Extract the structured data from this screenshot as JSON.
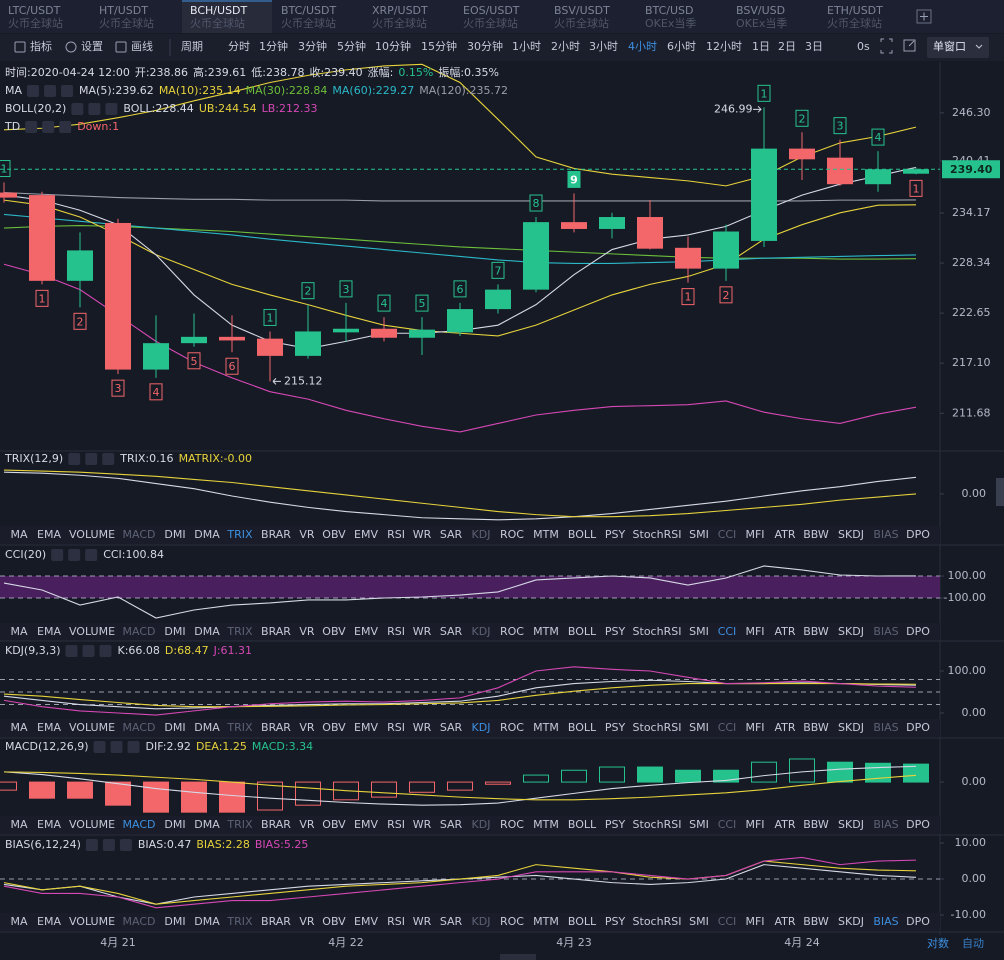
{
  "tabs": [
    {
      "pair": "LTC/USDT",
      "exchange": "火币全球站"
    },
    {
      "pair": "HT/USDT",
      "exchange": "火币全球站"
    },
    {
      "pair": "BCH/USDT",
      "exchange": "火币全球站"
    },
    {
      "pair": "BTC/USDT",
      "exchange": "火币全球站"
    },
    {
      "pair": "XRP/USDT",
      "exchange": "火币全球站"
    },
    {
      "pair": "EOS/USDT",
      "exchange": "火币全球站"
    },
    {
      "pair": "BSV/USDT",
      "exchange": "火币全球站"
    },
    {
      "pair": "BTC/USD",
      "exchange": "OKEx当季"
    },
    {
      "pair": "BSV/USD",
      "exchange": "OKEx当季"
    },
    {
      "pair": "ETH/USDT",
      "exchange": "火币全球站"
    }
  ],
  "active_tab": "BCH/USDT",
  "toolbar": {
    "tools": [
      "指标",
      "设置",
      "画线"
    ],
    "period_label": "周期",
    "periods": [
      "分时",
      "1分钟",
      "3分钟",
      "5分钟",
      "10分钟",
      "15分钟",
      "30分钟",
      "1小时",
      "2小时",
      "3小时",
      "4小时",
      "6小时",
      "12小时",
      "1日",
      "2日",
      "3日"
    ],
    "active_period": "4小时",
    "countdown": "0s",
    "window": "单窗口"
  },
  "indicator_tabs": [
    "MA",
    "EMA",
    "VOLUME",
    "MACD",
    "DMI",
    "DMA",
    "TRIX",
    "BRAR",
    "VR",
    "OBV",
    "EMV",
    "RSI",
    "WR",
    "SAR",
    "KDJ",
    "ROC",
    "MTM",
    "BOLL",
    "PSY",
    "StochRSI",
    "SMI",
    "CCI",
    "MFI",
    "ATR",
    "BBW",
    "SKDJ",
    "BIAS",
    "DPO"
  ],
  "scale_modes": [
    "对数",
    "自动"
  ],
  "active_scale": "对数",
  "chart_data": [
    {
      "type": "candlestick",
      "info": [
        {
          "text": "时间:2020-04-24 12:00",
          "color": "#d6d9e6"
        },
        {
          "text": "开:238.86",
          "color": "#d6d9e6"
        },
        {
          "text": "高:239.61",
          "color": "#d6d9e6"
        },
        {
          "text": "低:238.78",
          "color": "#d6d9e6"
        },
        {
          "text": "收:239.40",
          "color": "#d6d9e6"
        },
        {
          "text": "涨幅:",
          "color": "#d6d9e6"
        },
        {
          "text": "0.15%",
          "color": "#26c28e"
        },
        {
          "text": "振幅:0.35%",
          "color": "#d6d9e6"
        }
      ],
      "legend_rows": [
        [
          {
            "text": "MA",
            "color": "#d6d9e6"
          },
          {
            "text": "MA(5):239.62",
            "color": "#d6d9e6"
          },
          {
            "text": "MA(10):235.14",
            "color": "#e6d23b"
          },
          {
            "text": "MA(30):228.84",
            "color": "#6cbf3a"
          },
          {
            "text": "MA(60):229.27",
            "color": "#2bb8c8"
          },
          {
            "text": "MA(120):235.72",
            "color": "#9a9ea8"
          }
        ],
        [
          {
            "text": "BOLL(20,2)",
            "color": "#d6d9e6"
          },
          {
            "text": "BOLL:228.44",
            "color": "#d6d9e6"
          },
          {
            "text": "UB:244.54",
            "color": "#e6d23b"
          },
          {
            "text": "LB:212.33",
            "color": "#d648b5"
          }
        ],
        [
          {
            "text": "TD",
            "color": "#d6d9e6"
          },
          {
            "text": "Down:1",
            "color": "#f3666a"
          }
        ]
      ],
      "categories": [
        null,
        null,
        null,
        "4月 21",
        null,
        null,
        null,
        null,
        null,
        "4月 22",
        null,
        null,
        null,
        null,
        null,
        "4月 23",
        null,
        null,
        null,
        null,
        null,
        "4月 24",
        null,
        null,
        null
      ],
      "open": [
        236.6,
        236.3,
        226.3,
        233.0,
        216.4,
        219.3,
        220.0,
        219.8,
        217.9,
        220.5,
        220.9,
        219.9,
        220.5,
        223.1,
        225.3,
        233.1,
        232.3,
        233.7,
        230.1,
        227.7,
        230.9,
        241.9,
        240.8,
        237.6,
        238.86
      ],
      "high": [
        237.8,
        236.7,
        231.9,
        233.5,
        222.4,
        222.6,
        222.4,
        220.6,
        223.6,
        223.8,
        222.2,
        222.2,
        223.8,
        225.9,
        233.7,
        236.5,
        234.2,
        235.7,
        231.4,
        232.8,
        246.99,
        243.9,
        243.0,
        241.6,
        239.61
      ],
      "low": [
        235.4,
        225.9,
        223.3,
        215.9,
        215.5,
        218.9,
        218.3,
        215.12,
        217.6,
        219.5,
        219.5,
        218.0,
        220.1,
        222.6,
        225.0,
        231.9,
        231.2,
        229.9,
        226.1,
        226.3,
        230.2,
        238.1,
        237.4,
        236.7,
        238.78
      ],
      "close": [
        236.0,
        226.3,
        229.8,
        216.4,
        219.3,
        220.0,
        219.6,
        217.9,
        220.6,
        220.9,
        219.9,
        220.8,
        223.1,
        225.3,
        233.1,
        232.3,
        233.7,
        230.0,
        227.7,
        232.0,
        241.9,
        240.6,
        237.6,
        239.4,
        239.4
      ],
      "up_color": "#26c28e",
      "down_color": "#f3666a",
      "lines": [
        {
          "color": "#e6d23b",
          "values": [
            244.2,
            244.4,
            244.9,
            245.7,
            246.6,
            247.8,
            248.9,
            250.1,
            251.0,
            251.7,
            252.2,
            252.4,
            250.1,
            245.5,
            240.9,
            239.5,
            238.8,
            238.4,
            238.0,
            237.4,
            238.6,
            240.9,
            242.6,
            243.4,
            244.54
          ]
        },
        {
          "color": "#d648b5",
          "values": [
            228.2,
            227.0,
            225.3,
            222.4,
            219.5,
            217.2,
            215.5,
            214.0,
            213.2,
            212.0,
            211.1,
            210.3,
            209.7,
            210.6,
            211.5,
            212.0,
            212.4,
            212.5,
            212.6,
            213.0,
            211.8,
            211.1,
            210.6,
            211.6,
            212.33
          ]
        },
        {
          "color": "#9a9ea8",
          "values": [
            236.6,
            236.4,
            236.2,
            236.0,
            235.9,
            235.8,
            235.8,
            235.7,
            235.7,
            235.7,
            235.6,
            235.6,
            235.6,
            235.6,
            235.6,
            235.6,
            235.6,
            235.6,
            235.6,
            235.6,
            235.6,
            235.6,
            235.7,
            235.7,
            235.72
          ]
        },
        {
          "color": "#6cbf3a",
          "values": [
            232.4,
            232.6,
            232.7,
            232.6,
            232.4,
            232.2,
            232.0,
            231.7,
            231.4,
            231.1,
            230.8,
            230.5,
            230.2,
            230.0,
            229.8,
            229.6,
            229.4,
            229.2,
            229.0,
            228.9,
            228.9,
            228.9,
            228.8,
            228.8,
            228.84
          ]
        },
        {
          "color": "#2bb8c8",
          "values": [
            234.0,
            233.6,
            233.2,
            232.8,
            232.4,
            232.0,
            231.6,
            231.1,
            230.7,
            230.3,
            229.9,
            229.5,
            229.1,
            228.7,
            228.4,
            228.3,
            228.3,
            228.4,
            228.5,
            228.7,
            228.9,
            229.0,
            229.1,
            229.2,
            229.27
          ]
        },
        {
          "color": "#e6d23b",
          "values": [
            235.7,
            235.1,
            233.7,
            231.6,
            229.3,
            227.6,
            225.9,
            224.7,
            223.6,
            222.4,
            221.3,
            220.7,
            220.4,
            220.1,
            221.3,
            223.0,
            224.7,
            225.9,
            226.8,
            228.2,
            231.1,
            232.8,
            234.2,
            235.1,
            235.14
          ]
        },
        {
          "color": "#d6d9e6",
          "values": [
            236.3,
            235.7,
            234.5,
            232.8,
            229.3,
            224.7,
            221.3,
            219.5,
            218.7,
            219.5,
            220.4,
            220.4,
            220.7,
            221.3,
            223.6,
            227.0,
            229.9,
            231.1,
            231.6,
            232.6,
            234.5,
            236.3,
            237.6,
            238.6,
            239.62
          ]
        }
      ],
      "td_up": [
        "1",
        null,
        null,
        null,
        null,
        null,
        null,
        "1",
        "2",
        "3",
        "4",
        "5",
        "6",
        "7",
        "8",
        "9",
        null,
        null,
        null,
        null,
        "1",
        "2",
        "3",
        "4",
        null
      ],
      "td_down": [
        null,
        "1",
        "2",
        "3",
        "4",
        "5",
        "6",
        null,
        null,
        null,
        null,
        null,
        null,
        null,
        null,
        null,
        null,
        null,
        "1",
        "2",
        null,
        null,
        null,
        null,
        "1"
      ],
      "max_label": "246.99",
      "min_label": "215.12",
      "current_price": {
        "value": 239.4,
        "label": "239.40"
      },
      "yscale": "log",
      "ylim": [
        207.8,
        252.7
      ],
      "yticks": [
        {
          "value": 246.3,
          "label": "246.30"
        },
        240.41,
        234.17,
        228.34,
        222.65,
        {
          "value": 217.1,
          "label": "217.10"
        },
        211.68
      ],
      "grid": false
    },
    {
      "type": "line",
      "title": "TRIX(12,9)",
      "legend": [
        {
          "text": "TRIX:0.16",
          "color": "#d6d9e6"
        },
        {
          "text": "MATRIX:-0.00",
          "color": "#e6d23b"
        }
      ],
      "series": [
        {
          "color": "#d6d9e6",
          "values": [
            0.21,
            0.2,
            0.18,
            0.15,
            0.1,
            0.05,
            -0.02,
            -0.08,
            -0.13,
            -0.17,
            -0.2,
            -0.23,
            -0.24,
            -0.25,
            -0.24,
            -0.22,
            -0.19,
            -0.15,
            -0.11,
            -0.07,
            -0.02,
            0.03,
            0.07,
            0.12,
            0.16
          ]
        },
        {
          "color": "#e6d23b",
          "values": [
            0.23,
            0.22,
            0.21,
            0.19,
            0.17,
            0.14,
            0.11,
            0.07,
            0.03,
            -0.01,
            -0.05,
            -0.09,
            -0.13,
            -0.17,
            -0.2,
            -0.22,
            -0.22,
            -0.21,
            -0.19,
            -0.16,
            -0.13,
            -0.1,
            -0.06,
            -0.03,
            0.0
          ]
        }
      ],
      "ylim": [
        -0.3,
        0.25
      ],
      "yticks": [
        {
          "value": 0,
          "label": "0.00"
        }
      ]
    },
    {
      "type": "line",
      "title": "CCI(20)",
      "legend": [
        {
          "text": "CCI:100.84",
          "color": "#d6d9e6"
        }
      ],
      "band": {
        "range": [
          -100,
          100
        ],
        "color": "#4a1f5e"
      },
      "reference_lines": [
        100,
        -100
      ],
      "series": [
        {
          "color": "#d6d9e6",
          "values": [
            36,
            -27,
            -164,
            -91,
            -282,
            -209,
            -164,
            -145,
            -118,
            -118,
            -100,
            -91,
            -73,
            -45,
            64,
            82,
            100,
            82,
            18,
            82,
            191,
            155,
            109,
            100,
            100.84
          ]
        }
      ],
      "ylim": [
        -300,
        200
      ],
      "yticks": [
        {
          "value": 100,
          "label": "100.00"
        },
        {
          "value": -100,
          "label": "-100.00"
        }
      ]
    },
    {
      "type": "line",
      "title": "KDJ(9,3,3)",
      "legend": [
        {
          "text": "K:66.08",
          "color": "#d6d9e6"
        },
        {
          "text": "D:68.47",
          "color": "#e6d23b"
        },
        {
          "text": "J:61.31",
          "color": "#d648b5"
        }
      ],
      "reference_lines": [
        80,
        50,
        20
      ],
      "series": [
        {
          "color": "#d6d9e6",
          "values": [
            40,
            30,
            20,
            15,
            10,
            12,
            15,
            18,
            20,
            22,
            22,
            25,
            28,
            40,
            60,
            70,
            75,
            78,
            75,
            70,
            70,
            72,
            70,
            68,
            66.08
          ]
        },
        {
          "color": "#e6d23b",
          "values": [
            45,
            40,
            32,
            25,
            18,
            15,
            15,
            16,
            17,
            19,
            20,
            22,
            24,
            30,
            42,
            52,
            60,
            66,
            70,
            70,
            70,
            70,
            70,
            69,
            68.47
          ]
        },
        {
          "color": "#d648b5",
          "values": [
            30,
            15,
            5,
            0,
            -5,
            5,
            15,
            22,
            26,
            28,
            26,
            30,
            36,
            60,
            100,
            110,
            104,
            100,
            85,
            70,
            72,
            76,
            70,
            64,
            61.31
          ]
        }
      ],
      "ylim": [
        -16.7,
        154.8
      ],
      "yticks": [
        {
          "value": 100,
          "label": "100.00"
        },
        {
          "value": 0,
          "label": "0.00"
        }
      ]
    },
    {
      "type": "line",
      "title": "MACD(12,26,9)",
      "legend": [
        {
          "text": "DIF:2.92",
          "color": "#d6d9e6"
        },
        {
          "text": "DEA:1.25",
          "color": "#e6d23b"
        },
        {
          "text": "MACD:3.34",
          "color": "#26c28e"
        }
      ],
      "series": [
        {
          "type": "bar",
          "up_color": "#26c28e",
          "down_color": "#f3666a",
          "values": [
            -1.5,
            -3.0,
            -3.0,
            -4.3,
            -5.6,
            -5.6,
            -5.6,
            -5.2,
            -4.3,
            -3.3,
            -2.8,
            -1.9,
            -1.5,
            -0.4,
            1.3,
            2.2,
            2.8,
            2.8,
            2.2,
            2.2,
            3.7,
            4.3,
            3.7,
            3.5,
            3.34
          ]
        },
        {
          "color": "#d6d9e6",
          "values": [
            1.9,
            1.4,
            0.6,
            -0.3,
            -1.2,
            -1.9,
            -2.5,
            -3.0,
            -3.4,
            -3.8,
            -4.1,
            -4.3,
            -4.2,
            -3.9,
            -3.0,
            -2.1,
            -1.2,
            -0.6,
            -0.1,
            0.3,
            1.2,
            1.9,
            2.4,
            2.7,
            2.92
          ]
        },
        {
          "color": "#e6d23b",
          "values": [
            1.9,
            1.8,
            1.6,
            1.3,
            0.9,
            0.5,
            0.0,
            -0.6,
            -1.1,
            -1.6,
            -2.0,
            -2.4,
            -2.8,
            -3.1,
            -3.3,
            -3.3,
            -3.1,
            -2.8,
            -2.4,
            -2.0,
            -1.4,
            -0.6,
            0.1,
            0.7,
            1.25
          ]
        }
      ],
      "ylim": [
        -6.5,
        6.9
      ],
      "yticks": [
        {
          "value": 0,
          "label": "0.00"
        }
      ]
    },
    {
      "type": "line",
      "title": "BIAS(6,12,24)",
      "legend": [
        {
          "text": "BIAS:0.47",
          "color": "#d6d9e6"
        },
        {
          "text": "BIAS:2.28",
          "color": "#e6d23b"
        },
        {
          "text": "BIAS:5.25",
          "color": "#d648b5"
        }
      ],
      "reference_lines": [
        0
      ],
      "series": [
        {
          "color": "#d6d9e6",
          "values": [
            -1.5,
            -3,
            -2,
            -5,
            -7,
            -5,
            -4,
            -3,
            -2,
            -1.5,
            -1,
            -0.5,
            0,
            0.5,
            1,
            0,
            -1,
            -1.5,
            -1,
            0,
            4,
            3,
            2,
            1,
            0.47
          ]
        },
        {
          "color": "#e6d23b",
          "values": [
            -1,
            -3,
            -2,
            -4,
            -7,
            -6,
            -5,
            -4,
            -3,
            -2,
            -1.5,
            -1,
            0,
            1,
            4,
            3,
            2,
            0.5,
            0,
            1,
            5,
            4,
            3,
            2.5,
            2.28
          ]
        },
        {
          "color": "#d648b5",
          "values": [
            -2,
            -4,
            -4,
            -5,
            -8,
            -7,
            -6,
            -6,
            -5,
            -4,
            -3,
            -2,
            -1,
            0,
            2,
            2,
            2,
            1,
            0,
            1,
            5,
            6,
            4,
            5,
            5.25
          ]
        }
      ],
      "ylim": [
        -10,
        11.4
      ],
      "yticks": [
        {
          "value": 10,
          "label": "10.00"
        },
        {
          "value": 0,
          "label": "0.00"
        },
        {
          "value": -10,
          "label": "-10.00"
        }
      ]
    }
  ]
}
